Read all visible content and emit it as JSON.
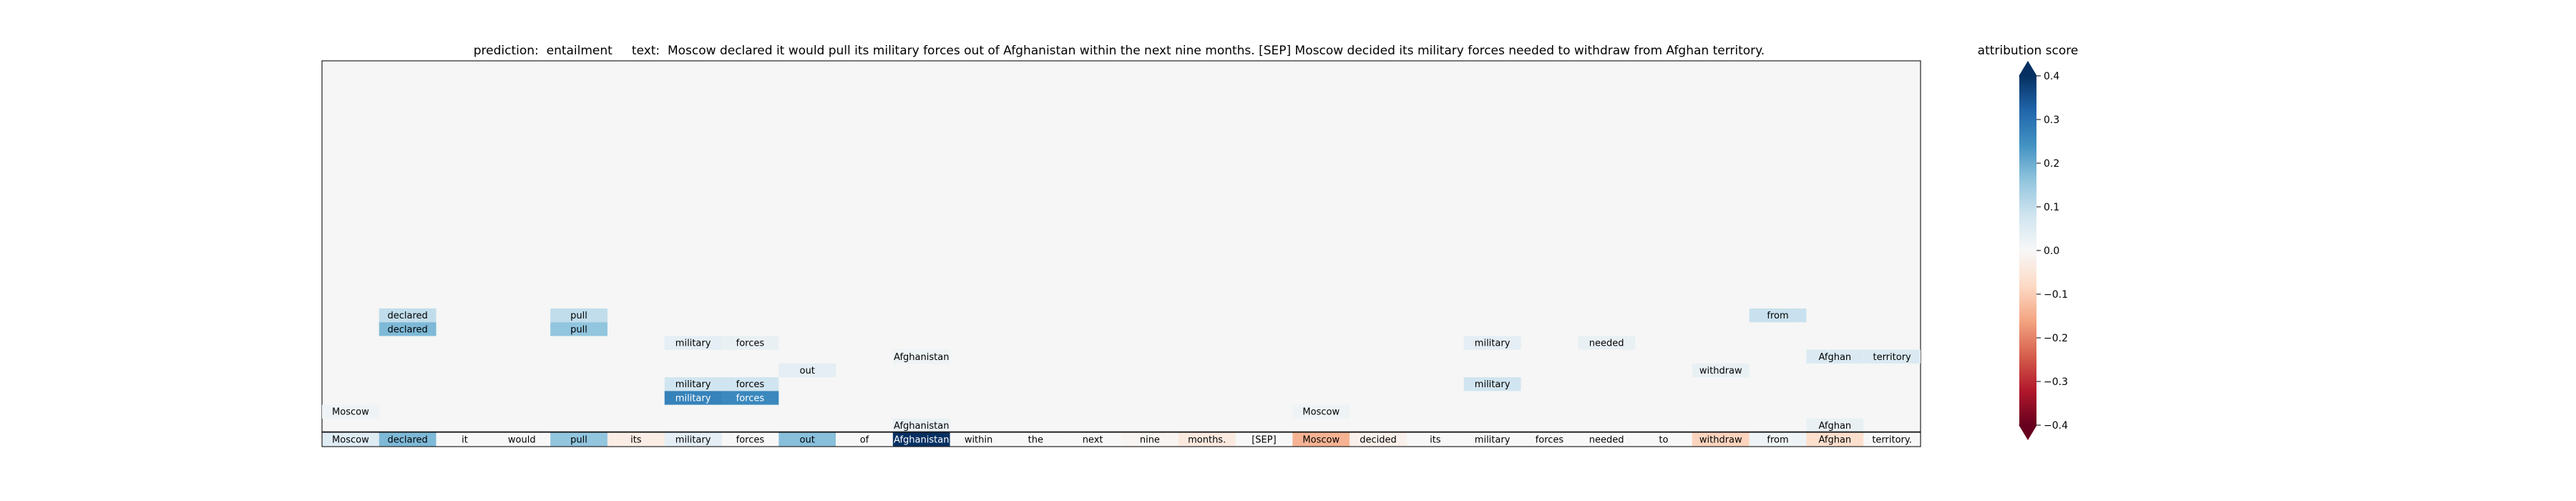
{
  "chart_data": {
    "type": "heatmap",
    "title_prefix": "prediction:",
    "prediction": "entailment",
    "text_prefix": "text:",
    "text": "Moscow declared it would pull its military forces out of Afghanistan within the next nine months. [SEP] Moscow decided its military forces needed to withdraw from Afghan territory.",
    "colorbar": {
      "label": "attribution score",
      "range": [
        -0.4,
        0.4
      ],
      "ticks": [
        0.4,
        0.3,
        0.2,
        0.1,
        0.0,
        -0.1,
        -0.2,
        -0.3,
        -0.4
      ],
      "tick_labels": [
        "0.4",
        "0.3",
        "0.2",
        "0.1",
        "0.0",
        "−0.1",
        "−0.2",
        "−0.3",
        "−0.4"
      ],
      "colormap": "RdBu",
      "low_color": "#67001f",
      "high_color": "#053061"
    },
    "tokens": [
      "Moscow",
      "declared",
      "it",
      "would",
      "pull",
      "its",
      "military",
      "forces",
      "out",
      "of",
      "Afghanistan",
      "within",
      "the",
      "next",
      "nine",
      "months.",
      "[SEP]",
      "Moscow",
      "decided",
      "its",
      "military",
      "forces",
      "needed",
      "to",
      "withdraw",
      "from",
      "Afghan",
      "territory."
    ],
    "token_scores": [
      0.05,
      0.18,
      0.0,
      0.0,
      0.16,
      -0.03,
      0.04,
      0.0,
      0.17,
      0.0,
      0.42,
      0.0,
      0.0,
      0.0,
      -0.01,
      -0.04,
      0.0,
      -0.14,
      -0.02,
      0.0,
      0.0,
      0.0,
      0.0,
      0.0,
      -0.09,
      0.02,
      -0.07,
      0.0
    ],
    "attention_rows": 27,
    "cells": [
      {
        "col": 1,
        "row": 18,
        "label": "declared",
        "value": 0.1
      },
      {
        "col": 1,
        "row": 19,
        "label": "declared",
        "value": 0.18
      },
      {
        "col": 4,
        "row": 18,
        "label": "pull",
        "value": 0.1
      },
      {
        "col": 4,
        "row": 19,
        "label": "pull",
        "value": 0.16
      },
      {
        "col": 6,
        "row": 20,
        "label": "military",
        "value": 0.04
      },
      {
        "col": 7,
        "row": 20,
        "label": "forces",
        "value": 0.03
      },
      {
        "col": 10,
        "row": 21,
        "label": "Afghanistan",
        "value": 0.02
      },
      {
        "col": 8,
        "row": 22,
        "label": "out",
        "value": 0.04
      },
      {
        "col": 6,
        "row": 23,
        "label": "military",
        "value": 0.08
      },
      {
        "col": 7,
        "row": 23,
        "label": "forces",
        "value": 0.08
      },
      {
        "col": 6,
        "row": 24,
        "label": "military",
        "value": 0.27
      },
      {
        "col": 7,
        "row": 24,
        "label": "forces",
        "value": 0.26
      },
      {
        "col": 0,
        "row": 25,
        "label": "Moscow",
        "value": 0.02
      },
      {
        "col": 10,
        "row": 26,
        "label": "Afghanistan",
        "value": 0.03
      },
      {
        "col": 17,
        "row": 25,
        "label": "Moscow",
        "value": 0.02
      },
      {
        "col": 20,
        "row": 20,
        "label": "military",
        "value": 0.04
      },
      {
        "col": 20,
        "row": 23,
        "label": "military",
        "value": 0.08
      },
      {
        "col": 22,
        "row": 20,
        "label": "needed",
        "value": 0.03
      },
      {
        "col": 24,
        "row": 22,
        "label": "withdraw",
        "value": 0.03
      },
      {
        "col": 25,
        "row": 18,
        "label": "from",
        "value": 0.09
      },
      {
        "col": 26,
        "row": 21,
        "label": "Afghan",
        "value": 0.06
      },
      {
        "col": 27,
        "row": 21,
        "label": "territory",
        "value": 0.06
      },
      {
        "col": 26,
        "row": 26,
        "label": "Afghan",
        "value": 0.03
      }
    ]
  }
}
